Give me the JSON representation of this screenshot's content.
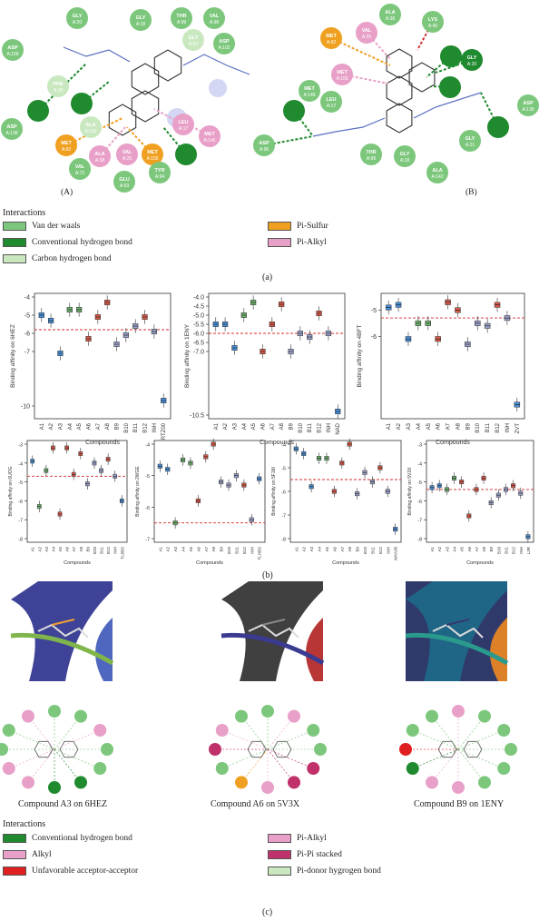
{
  "panel_a": {
    "caption": "(a)",
    "sub_a": "(A)",
    "sub_b": "(B)",
    "legend_title": "Interactions",
    "legend": [
      {
        "label": "Van der waals",
        "color": "#7dc77d"
      },
      {
        "label": "Conventional hydrogen bond",
        "color": "#1f8a2e"
      },
      {
        "label": "Carbon hydrogen bond",
        "color": "#c9e8c0"
      },
      {
        "label": "Pi-Sulfur",
        "color": "#f0a020"
      },
      {
        "label": "Pi-Alkyl",
        "color": "#e8a0c8"
      }
    ],
    "left_residues": [
      {
        "t": "ASP",
        "n": "A:156",
        "c": "vdw"
      },
      {
        "t": "GLY",
        "n": "A:20",
        "c": "vdw"
      },
      {
        "t": "GLY",
        "n": "A:18",
        "c": "vdw"
      },
      {
        "t": "THR",
        "n": "A:99",
        "c": "vdw"
      },
      {
        "t": "VAL",
        "n": "A:98",
        "c": "vdw"
      },
      {
        "t": "ASP",
        "n": "A:138",
        "c": "vdw"
      },
      {
        "t": "GLY",
        "n": "A:97",
        "c": "chb"
      },
      {
        "t": "ASP",
        "n": "A:102",
        "c": "vdw"
      },
      {
        "t": "PHE",
        "n": "A:19",
        "c": "chb"
      },
      {
        "t": "",
        "n": "",
        "c": "hb"
      },
      {
        "t": "",
        "n": "",
        "c": "hb"
      },
      {
        "t": "ALA",
        "n": "A:142",
        "c": "chb"
      },
      {
        "t": "LEU",
        "n": "A:17",
        "c": "pa"
      },
      {
        "t": "MET",
        "n": "A:145",
        "c": "pa"
      },
      {
        "t": "MET",
        "n": "A:92",
        "c": "ps"
      },
      {
        "t": "ALA",
        "n": "A:38",
        "c": "pa"
      },
      {
        "t": "VAL",
        "n": "A:25",
        "c": "pa"
      },
      {
        "t": "MET",
        "n": "A:155",
        "c": "ps"
      },
      {
        "t": "",
        "n": "",
        "c": "hb"
      },
      {
        "t": "VAL",
        "n": "A:72",
        "c": "vdw"
      },
      {
        "t": "TYR",
        "n": "A:94",
        "c": "vdw"
      },
      {
        "t": "GLU",
        "n": "A:93",
        "c": "vdw"
      }
    ],
    "right_residues": [
      {
        "t": "ALA",
        "n": "A:38",
        "c": "vdw"
      },
      {
        "t": "VAL",
        "n": "A:25",
        "c": "pa"
      },
      {
        "t": "LYS",
        "n": "A:40",
        "c": "vdw"
      },
      {
        "t": "MET",
        "n": "A:92",
        "c": "ps"
      },
      {
        "t": "MET",
        "n": "A:155",
        "c": "pa"
      },
      {
        "t": "GLY",
        "n": "A:20",
        "c": "hb"
      },
      {
        "t": "",
        "n": "",
        "c": "hb"
      },
      {
        "t": "",
        "n": "",
        "c": "hb"
      },
      {
        "t": "MET",
        "n": "A:145",
        "c": "vdw"
      },
      {
        "t": "LEU",
        "n": "A:17",
        "c": "vdw"
      },
      {
        "t": "ASP",
        "n": "A:138",
        "c": "vdw"
      },
      {
        "t": "",
        "n": "",
        "c": "hb"
      },
      {
        "t": "",
        "n": "",
        "c": "hb"
      },
      {
        "t": "ASP",
        "n": "A:96",
        "c": "vdw"
      },
      {
        "t": "THR",
        "n": "A:99",
        "c": "vdw"
      },
      {
        "t": "GLY",
        "n": "A:18",
        "c": "vdw"
      },
      {
        "t": "GLY",
        "n": "A:21",
        "c": "vdw"
      },
      {
        "t": "ALA",
        "n": "A:142",
        "c": "vdw"
      }
    ]
  },
  "panel_b": {
    "caption": "(b)",
    "ylabel_prefix": "Binding affinity on",
    "xlabel": "Compounds",
    "plots": [
      {
        "target": "6HEZ",
        "ylim": [
          -10.5,
          -4
        ],
        "ticks": [
          "-4",
          "-5",
          "-6",
          "-7",
          "-10"
        ],
        "ref": -5.8,
        "categories": [
          "A1",
          "A2",
          "A3",
          "A4",
          "A5",
          "A6",
          "A7",
          "A8",
          "B9",
          "B10",
          "B11",
          "B12",
          "INH",
          "RTZ00"
        ],
        "values": [
          -5.0,
          -5.3,
          -7.1,
          -4.7,
          -4.7,
          -6.3,
          -5.1,
          -4.3,
          -6.6,
          -6.1,
          -5.6,
          -5.1,
          -5.9,
          -9.7
        ],
        "colors": [
          "#4a8fd6",
          "#4a8fd6",
          "#4a8fd6",
          "#6fb26f",
          "#6fb26f",
          "#d45a4a",
          "#d45a4a",
          "#d45a4a",
          "#9aa0c8",
          "#9aa0c8",
          "#9aa0c8",
          "#d45a4a",
          "#9aa0c8",
          "#4a8fd6"
        ]
      },
      {
        "target": "1ENY",
        "ylim": [
          -10.5,
          -4
        ],
        "ticks": [
          "-4.0",
          "-4.5",
          "-5.0",
          "-5.5",
          "-6.0",
          "-6.5",
          "-7.0",
          "-10.5"
        ],
        "ref": -6.0,
        "categories": [
          "A1",
          "A2",
          "A3",
          "A4",
          "A5",
          "A6",
          "A7",
          "A8",
          "B9",
          "B10",
          "B11",
          "B12",
          "INH",
          "NAD"
        ],
        "values": [
          -5.5,
          -5.5,
          -6.8,
          -5.0,
          -4.3,
          -7.0,
          -5.5,
          -4.4,
          -7.0,
          -6.0,
          -6.2,
          -4.9,
          -6.0,
          -10.3
        ],
        "colors": [
          "#4a8fd6",
          "#4a8fd6",
          "#4a8fd6",
          "#6fb26f",
          "#6fb26f",
          "#d45a4a",
          "#d45a4a",
          "#d45a4a",
          "#9aa0c8",
          "#9aa0c8",
          "#9aa0c8",
          "#d45a4a",
          "#9aa0c8",
          "#4a8fd6"
        ]
      },
      {
        "target": "4BFT",
        "ylim": [
          -9,
          -4.5
        ],
        "ticks": [
          "-5",
          "-6"
        ],
        "ref": -5.3,
        "categories": [
          "A1",
          "A2",
          "A3",
          "A4",
          "A5",
          "A6",
          "A7",
          "A8",
          "B9",
          "B10",
          "B11",
          "B12",
          "INH",
          "ZVT"
        ],
        "values": [
          -4.9,
          -4.8,
          -6.1,
          -5.5,
          -5.5,
          -6.1,
          -4.7,
          -5.0,
          -6.3,
          -5.5,
          -5.6,
          -4.8,
          -5.3,
          -8.6
        ],
        "colors": [
          "#4a8fd6",
          "#4a8fd6",
          "#4a8fd6",
          "#6fb26f",
          "#6fb26f",
          "#d45a4a",
          "#d45a4a",
          "#d45a4a",
          "#9aa0c8",
          "#9aa0c8",
          "#9aa0c8",
          "#d45a4a",
          "#9aa0c8",
          "#4a8fd6"
        ]
      },
      {
        "target": "6UOG",
        "ylim": [
          -8,
          -3
        ],
        "ticks": [
          "-3",
          "-4",
          "-5",
          "-6",
          "-7",
          "-8"
        ],
        "ref": -4.7,
        "categories": [
          "A1",
          "A2",
          "A3",
          "A4",
          "A5",
          "A6",
          "A7",
          "A8",
          "B9",
          "B10",
          "B11",
          "B12",
          "INH",
          "TL8BS"
        ],
        "values": [
          -3.9,
          -6.3,
          -4.4,
          -3.2,
          -6.7,
          -3.2,
          -4.6,
          -3.5,
          -5.1,
          -4.0,
          -4.4,
          -3.8,
          -4.7,
          -6.0
        ],
        "colors": [
          "#4a8fd6",
          "#6fb26f",
          "#6fb26f",
          "#d45a4a",
          "#d45a4a",
          "#d45a4a",
          "#d45a4a",
          "#d45a4a",
          "#9aa0c8",
          "#9aa0c8",
          "#9aa0c8",
          "#d45a4a",
          "#9aa0c8",
          "#4a8fd6"
        ]
      },
      {
        "target": "2WGE",
        "ylim": [
          -7,
          -4
        ],
        "ticks": [
          "-4",
          "-5",
          "-6",
          "-7"
        ],
        "ref": -6.5,
        "categories": [
          "A1",
          "A2",
          "A3",
          "A4",
          "A5",
          "A6",
          "A7",
          "A8",
          "B9",
          "B10",
          "B11",
          "B12",
          "INH",
          "TLHBS"
        ],
        "values": [
          -4.7,
          -4.8,
          -6.5,
          -4.5,
          -4.6,
          -5.8,
          -4.4,
          -4.0,
          -5.2,
          -5.3,
          -5.0,
          -5.3,
          -6.4,
          -5.1
        ],
        "colors": [
          "#4a8fd6",
          "#4a8fd6",
          "#6fb26f",
          "#6fb26f",
          "#6fb26f",
          "#d45a4a",
          "#d45a4a",
          "#d45a4a",
          "#9aa0c8",
          "#9aa0c8",
          "#9aa0c8",
          "#d45a4a",
          "#9aa0c8",
          "#4a8fd6"
        ]
      },
      {
        "target": "5F1M",
        "ylim": [
          -8,
          -4
        ],
        "ticks": [
          "-4",
          "-5",
          "-6",
          "-7",
          "-8"
        ],
        "ref": -5.5,
        "categories": [
          "A1",
          "A2",
          "A3",
          "A4",
          "A5",
          "A6",
          "A7",
          "A8",
          "B9",
          "B10",
          "B11",
          "B12",
          "INH",
          "MXA38"
        ],
        "values": [
          -4.2,
          -4.4,
          -5.8,
          -4.6,
          -4.6,
          -6.0,
          -4.8,
          -4.0,
          -6.1,
          -5.2,
          -5.6,
          -5.0,
          -6.0,
          -7.6
        ],
        "colors": [
          "#4a8fd6",
          "#4a8fd6",
          "#4a8fd6",
          "#6fb26f",
          "#6fb26f",
          "#d45a4a",
          "#d45a4a",
          "#d45a4a",
          "#9aa0c8",
          "#9aa0c8",
          "#9aa0c8",
          "#d45a4a",
          "#9aa0c8",
          "#4a8fd6"
        ]
      },
      {
        "target": "5V3X",
        "ylim": [
          -8,
          -3
        ],
        "ticks": [
          "-3",
          "-4",
          "-5",
          "-6",
          "-7",
          "-8"
        ],
        "ref": -5.4,
        "categories": [
          "A1",
          "A2",
          "A3",
          "A4",
          "A5",
          "A6",
          "A7",
          "A8",
          "B9",
          "B10",
          "B11",
          "B12",
          "INH",
          "L3R"
        ],
        "values": [
          -5.3,
          -5.2,
          -5.4,
          -4.8,
          -5.0,
          -6.8,
          -5.4,
          -4.8,
          -6.1,
          -5.7,
          -5.4,
          -5.2,
          -5.6,
          -7.9
        ],
        "colors": [
          "#4a8fd6",
          "#4a8fd6",
          "#6fb26f",
          "#6fb26f",
          "#d45a4a",
          "#d45a4a",
          "#d45a4a",
          "#d45a4a",
          "#9aa0c8",
          "#9aa0c8",
          "#9aa0c8",
          "#d45a4a",
          "#9aa0c8",
          "#4a8fd6"
        ]
      }
    ]
  },
  "panel_c": {
    "caption": "(c)",
    "complex_captions": [
      "Compound A3 on 6HEZ",
      "Compound A6 on 5V3X",
      "Compound B9 on 1ENY"
    ],
    "legend_title": "Interactions",
    "legend": [
      {
        "label": "Conventional hydrogen bond",
        "color": "#1f8a2e"
      },
      {
        "label": "Alkyl",
        "color": "#e8a0c8"
      },
      {
        "label": "Unfavorable acceptor-acceptor",
        "color": "#e02020"
      },
      {
        "label": "Pi-Alkyl",
        "color": "#e8a0c8"
      },
      {
        "label": "Pi-Pi stacked",
        "color": "#c0306a"
      },
      {
        "label": "Pi-donor hygrogen bond",
        "color": "#c9e8c0"
      }
    ]
  },
  "colors": {
    "vdw": "#7dc77d",
    "hb": "#1f8a2e",
    "chb": "#c9e8c0",
    "ps": "#f0a020",
    "pa": "#e8a0c8",
    "ref": "#d42a2a"
  }
}
